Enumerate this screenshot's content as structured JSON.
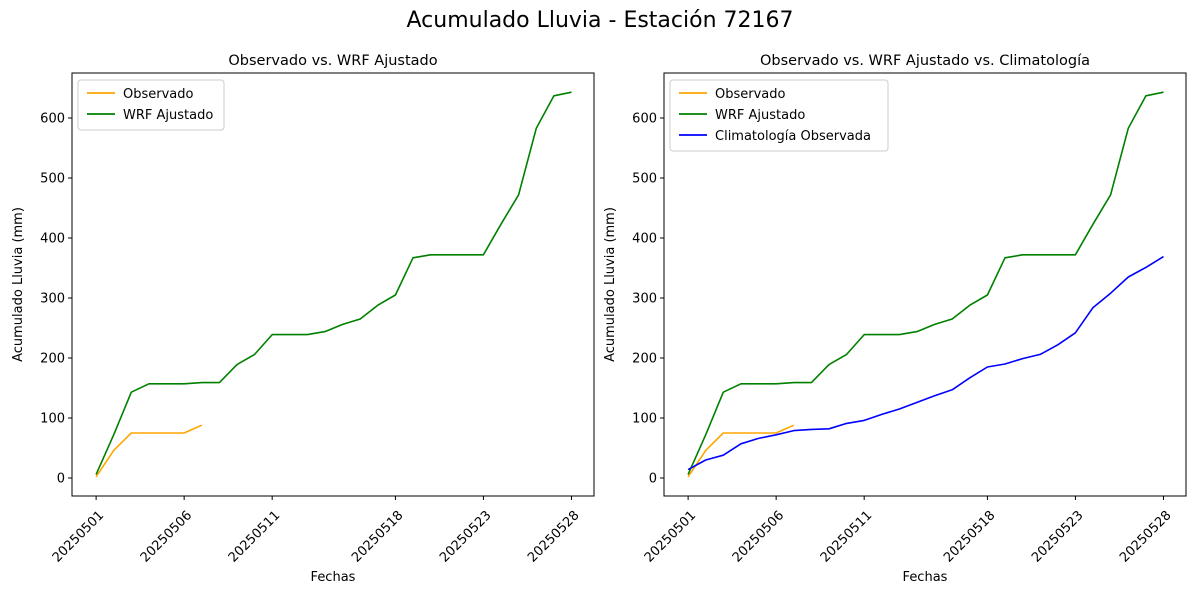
{
  "figure_title": "Acumulado Lluvia - Estación 72167",
  "colors": {
    "observado": "#ffa500",
    "wrf": "#008000",
    "climatologia": "#0000ff"
  },
  "chart_data": [
    {
      "type": "line",
      "title": "Observado vs. WRF Ajustado",
      "xlabel": "Fechas",
      "ylabel": "Acumulado Lluvia (mm)",
      "xticks": [
        "20250501",
        "20250506",
        "20250511",
        "20250518",
        "20250523",
        "20250528"
      ],
      "yticks": [
        0,
        100,
        200,
        300,
        400,
        500,
        600
      ],
      "ylim": [
        -30,
        675
      ],
      "legend_position": "upper-left",
      "grid": false,
      "series": [
        {
          "name": "Observado",
          "color": "#ffa500",
          "values": [
            2,
            46,
            75,
            75,
            75,
            75,
            88
          ]
        },
        {
          "name": "WRF Ajustado",
          "color": "#008000",
          "values": [
            6,
            72,
            143,
            157,
            157,
            157,
            159,
            159,
            189,
            206,
            239,
            239,
            239,
            244,
            256,
            265,
            288,
            305,
            367,
            372,
            372,
            372,
            372,
            423,
            472,
            583,
            637,
            643
          ]
        }
      ]
    },
    {
      "type": "line",
      "title": "Observado vs. WRF Ajustado vs. Climatología",
      "xlabel": "Fechas",
      "ylabel": "Acumulado Lluvia (mm)",
      "xticks": [
        "20250501",
        "20250506",
        "20250511",
        "20250518",
        "20250523",
        "20250528"
      ],
      "yticks": [
        0,
        100,
        200,
        300,
        400,
        500,
        600
      ],
      "ylim": [
        -30,
        675
      ],
      "legend_position": "upper-left",
      "grid": false,
      "series": [
        {
          "name": "Observado",
          "color": "#ffa500",
          "values": [
            2,
            46,
            75,
            75,
            75,
            75,
            88
          ]
        },
        {
          "name": "WRF Ajustado",
          "color": "#008000",
          "values": [
            6,
            72,
            143,
            157,
            157,
            157,
            159,
            159,
            189,
            206,
            239,
            239,
            239,
            244,
            256,
            265,
            288,
            305,
            367,
            372,
            372,
            372,
            372,
            423,
            472,
            583,
            637,
            643
          ]
        },
        {
          "name": "Climatología Observada",
          "color": "#0000ff",
          "values": [
            14,
            30,
            38,
            57,
            66,
            72,
            79,
            81,
            82,
            91,
            96,
            106,
            115,
            126,
            137,
            147,
            167,
            185,
            190,
            199,
            206,
            222,
            242,
            284,
            308,
            335,
            351,
            369
          ]
        }
      ]
    }
  ]
}
